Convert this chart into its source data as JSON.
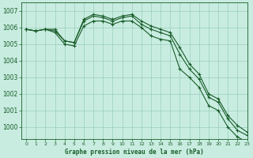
{
  "xlabel": "Graphe pression niveau de la mer (hPa)",
  "xlim": [
    -0.5,
    23
  ],
  "ylim": [
    999.3,
    1007.5
  ],
  "yticks": [
    1000,
    1001,
    1002,
    1003,
    1004,
    1005,
    1006,
    1007
  ],
  "xticks": [
    0,
    1,
    2,
    3,
    4,
    5,
    6,
    7,
    8,
    9,
    10,
    11,
    12,
    13,
    14,
    15,
    16,
    17,
    18,
    19,
    20,
    21,
    22,
    23
  ],
  "background_color": "#c8ede0",
  "grid_color": "#99ccbb",
  "line_color": "#1a5c2a",
  "series": [
    [
      1005.9,
      1005.8,
      1005.9,
      1005.9,
      1005.2,
      1005.1,
      1006.5,
      1006.8,
      1006.7,
      1006.5,
      1006.7,
      1006.8,
      1006.4,
      1006.1,
      1005.9,
      1005.7,
      1004.8,
      1003.8,
      1003.2,
      1002.0,
      1001.7,
      1000.7,
      1000.1,
      999.7
    ],
    [
      1005.9,
      1005.8,
      1005.9,
      1005.8,
      1005.2,
      1005.1,
      1006.4,
      1006.7,
      1006.6,
      1006.4,
      1006.6,
      1006.7,
      1006.2,
      1005.9,
      1005.7,
      1005.5,
      1004.4,
      1003.5,
      1002.9,
      1001.8,
      1001.5,
      1000.5,
      999.8,
      999.5
    ],
    [
      1005.9,
      1005.8,
      1005.9,
      1005.7,
      1005.0,
      1004.9,
      1006.1,
      1006.4,
      1006.4,
      1006.2,
      1006.4,
      1006.4,
      1006.0,
      1005.5,
      1005.3,
      1005.2,
      1003.5,
      1003.0,
      1002.4,
      1001.3,
      1001.0,
      1000.0,
      999.4,
      999.1
    ]
  ]
}
